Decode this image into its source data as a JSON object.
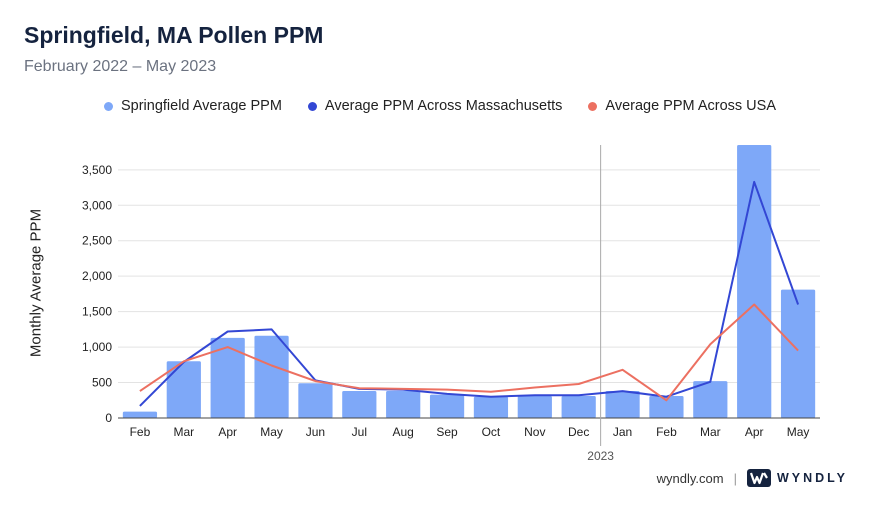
{
  "title": "Springfield, MA Pollen PPM",
  "subtitle": "February 2022 – May 2023",
  "legend": [
    {
      "label": "Springfield Average PPM",
      "color": "#7ea8f8"
    },
    {
      "label": "Average PPM Across Massachusetts",
      "color": "#3347d4"
    },
    {
      "label": "Average PPM Across USA",
      "color": "#ec7061"
    }
  ],
  "footer": {
    "url": "wyndly.com",
    "separator": "|",
    "brand": "WYNDLY",
    "brand_color": "#15233f"
  },
  "chart_data": {
    "type": "bar",
    "ylabel": "Monthly Average PPM",
    "xlabel": "",
    "ylim": [
      0,
      3850
    ],
    "yticks": [
      0,
      500,
      1000,
      1500,
      2000,
      2500,
      3000,
      3500
    ],
    "ytick_labels": [
      "0",
      "500",
      "1,000",
      "1,500",
      "2,000",
      "2,500",
      "3,000",
      "3,500"
    ],
    "grid": true,
    "categories": [
      "Feb",
      "Mar",
      "Apr",
      "May",
      "Jun",
      "Jul",
      "Aug",
      "Sep",
      "Oct",
      "Nov",
      "Dec",
      "Jan",
      "Feb",
      "Mar",
      "Apr",
      "May"
    ],
    "year_marker": {
      "label": "2023",
      "before_category_index": 11
    },
    "series": [
      {
        "name": "Springfield Average PPM",
        "kind": "bar",
        "color": "#7ea8f8",
        "values": [
          90,
          800,
          1130,
          1160,
          490,
          380,
          380,
          330,
          300,
          310,
          310,
          380,
          310,
          520,
          3850,
          1810
        ]
      },
      {
        "name": "Average PPM Across Massachusetts",
        "kind": "line",
        "color": "#3347d4",
        "values": [
          170,
          790,
          1220,
          1250,
          530,
          410,
          400,
          340,
          300,
          320,
          320,
          380,
          300,
          510,
          3330,
          1600
        ]
      },
      {
        "name": "Average PPM Across USA",
        "kind": "line",
        "color": "#ec7061",
        "values": [
          380,
          800,
          1000,
          740,
          520,
          420,
          410,
          400,
          370,
          430,
          480,
          680,
          250,
          1040,
          1600,
          950
        ]
      }
    ]
  }
}
